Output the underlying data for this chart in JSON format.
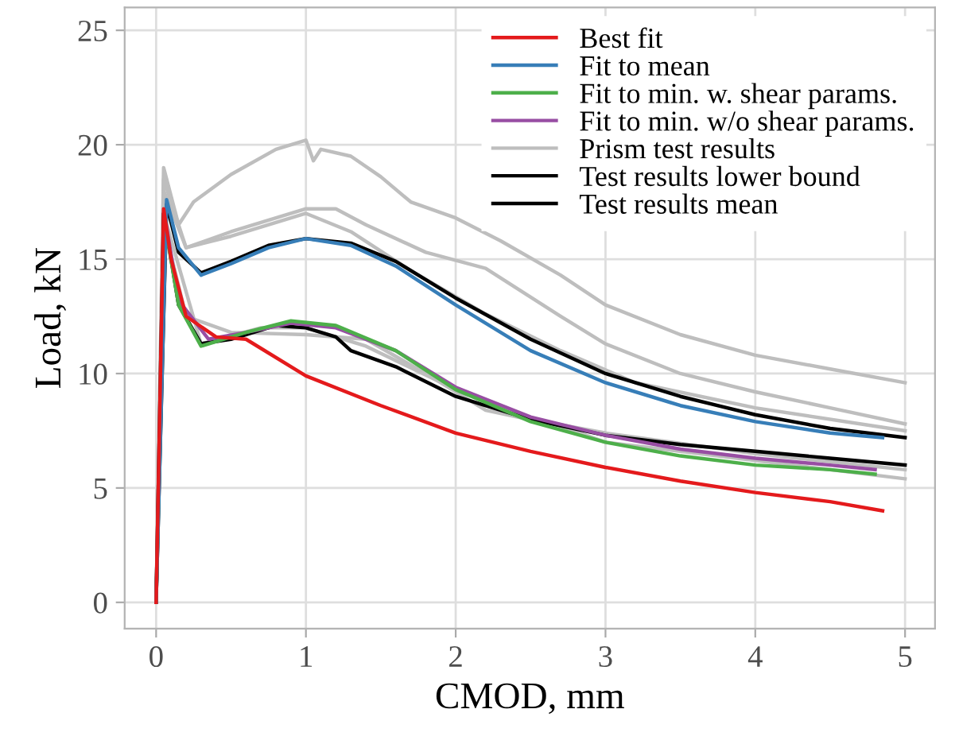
{
  "chart_data": {
    "type": "line",
    "xlabel": "CMOD, mm",
    "ylabel": "Load, kN",
    "xlim": [
      -0.21,
      5.2
    ],
    "ylim": [
      -1.15,
      26
    ],
    "xticks": [
      0,
      1,
      2,
      3,
      4,
      5
    ],
    "yticks": [
      0,
      5,
      10,
      15,
      20,
      25
    ],
    "grid": true,
    "legend": "top right",
    "line_style": "solid",
    "series": [
      {
        "name": "Best fit",
        "color": "#e41a1c",
        "x": [
          0,
          0.05,
          0.1,
          0.2,
          0.4,
          0.6,
          1.0,
          1.5,
          2.0,
          2.5,
          3.0,
          3.5,
          4.0,
          4.5,
          4.85
        ],
        "values": [
          0,
          17.2,
          15.0,
          12.5,
          11.6,
          11.5,
          9.9,
          8.6,
          7.4,
          6.6,
          5.9,
          5.3,
          4.8,
          4.4,
          4.0
        ]
      },
      {
        "name": "Fit to mean",
        "color": "#377eb8",
        "x": [
          0,
          0.07,
          0.15,
          0.3,
          0.5,
          0.75,
          1.0,
          1.3,
          1.6,
          2.0,
          2.5,
          3.0,
          3.5,
          4.0,
          4.5,
          4.85
        ],
        "values": [
          0,
          17.6,
          15.5,
          14.3,
          14.8,
          15.5,
          15.9,
          15.6,
          14.7,
          13.0,
          11.0,
          9.6,
          8.6,
          7.9,
          7.4,
          7.2
        ]
      },
      {
        "name": "Fit to min. w. shear params.",
        "color": "#4daf4a",
        "x": [
          0,
          0.06,
          0.15,
          0.3,
          0.6,
          0.9,
          1.2,
          1.6,
          2.0,
          2.5,
          3.0,
          3.5,
          4.0,
          4.5,
          4.8
        ],
        "values": [
          0,
          16.5,
          13.0,
          11.2,
          11.8,
          12.3,
          12.1,
          11.0,
          9.3,
          7.9,
          7.0,
          6.4,
          6.0,
          5.8,
          5.6
        ]
      },
      {
        "name": "Fit to min. w/o shear params.",
        "color": "#984ea3",
        "x": [
          0,
          0.06,
          0.15,
          0.35,
          0.6,
          0.9,
          1.2,
          1.6,
          2.0,
          2.5,
          3.0,
          3.5,
          4.0,
          4.5,
          4.8
        ],
        "values": [
          0,
          16.8,
          13.2,
          11.5,
          11.8,
          12.2,
          12.0,
          11.0,
          9.4,
          8.1,
          7.3,
          6.7,
          6.3,
          6.0,
          5.8
        ]
      },
      {
        "name": "Prism test results",
        "color": "#bebebe",
        "x": [
          0,
          0.05,
          0.15,
          0.25,
          0.5,
          0.8,
          1.0,
          1.05,
          1.1,
          1.3,
          1.5,
          1.7,
          2.0,
          2.3,
          2.7,
          3.0,
          3.5,
          4.0,
          4.5,
          5.0
        ],
        "values": [
          0,
          19.0,
          16.5,
          17.5,
          18.7,
          19.8,
          20.2,
          19.3,
          19.8,
          19.5,
          18.6,
          17.5,
          16.8,
          15.8,
          14.3,
          13.0,
          11.7,
          10.8,
          10.2,
          9.6
        ]
      },
      {
        "color": "#bebebe",
        "x": [
          0,
          0.05,
          0.2,
          0.5,
          1.0,
          1.2,
          1.4,
          1.8,
          2.2,
          2.7,
          3.0,
          3.5,
          4.0,
          4.5,
          5.0
        ],
        "values": [
          0,
          18.5,
          15.5,
          16.2,
          17.2,
          17.2,
          16.5,
          15.3,
          14.6,
          12.5,
          11.3,
          10.0,
          9.2,
          8.5,
          7.8
        ]
      },
      {
        "color": "#bebebe",
        "x": [
          0,
          0.05,
          0.2,
          0.5,
          1.0,
          1.3,
          1.7,
          2.2,
          2.7,
          3.2,
          4.0,
          5.0
        ],
        "values": [
          0,
          18.0,
          15.5,
          16.0,
          17.0,
          16.2,
          14.5,
          12.6,
          11.0,
          9.6,
          8.5,
          7.5
        ]
      },
      {
        "color": "#bebebe",
        "x": [
          0,
          0.05,
          0.2,
          0.5,
          1.0,
          1.4,
          1.8,
          2.2,
          2.7,
          3.0,
          3.5,
          4.0,
          4.5,
          5.0
        ],
        "values": [
          0,
          16.5,
          12.5,
          11.8,
          11.7,
          11.5,
          10.0,
          8.4,
          7.7,
          7.0,
          6.6,
          6.2,
          5.8,
          5.4
        ]
      },
      {
        "color": "#bebebe",
        "x": [
          0,
          0.05,
          0.3,
          0.7,
          1.0,
          1.4,
          2.0,
          2.5,
          3.0,
          4.0,
          5.0
        ],
        "values": [
          0,
          17.0,
          11.3,
          12.0,
          12.0,
          11.2,
          9.3,
          8.0,
          7.4,
          6.5,
          5.8
        ]
      },
      {
        "name": "Test results lower bound",
        "color": "#000000",
        "x": [
          0,
          0.05,
          0.15,
          0.3,
          0.5,
          0.8,
          1.0,
          1.2,
          1.3,
          1.6,
          2.0,
          2.5,
          3.0,
          3.5,
          4.0,
          4.5,
          5.0
        ],
        "values": [
          0,
          17.0,
          13.0,
          11.3,
          11.5,
          12.1,
          12.0,
          11.6,
          11.0,
          10.3,
          9.0,
          8.0,
          7.3,
          6.9,
          6.6,
          6.3,
          6.0
        ]
      },
      {
        "name": "Test results mean",
        "color": "#000000",
        "x": [
          0,
          0.07,
          0.15,
          0.3,
          0.5,
          0.75,
          1.0,
          1.3,
          1.6,
          2.0,
          2.5,
          3.0,
          3.5,
          4.0,
          4.5,
          5.0
        ],
        "values": [
          0,
          17.4,
          15.3,
          14.4,
          14.9,
          15.6,
          15.9,
          15.7,
          14.9,
          13.3,
          11.5,
          10.0,
          9.0,
          8.2,
          7.6,
          7.2
        ]
      }
    ]
  }
}
